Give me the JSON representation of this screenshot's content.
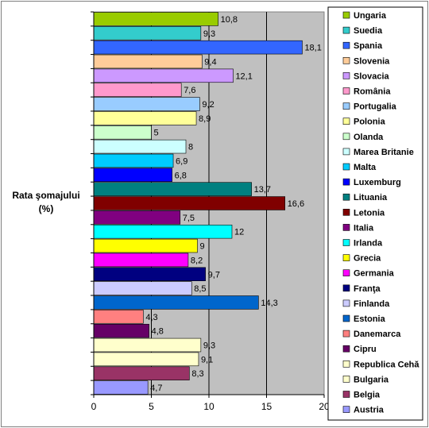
{
  "chart_data": {
    "type": "bar",
    "orientation": "horizontal",
    "ylabel_lines": [
      "Rata şomajului",
      "(%)"
    ],
    "xlim": [
      0,
      20
    ],
    "xticks": [
      0,
      5,
      10,
      15,
      20
    ],
    "grid": true,
    "legend_position": "right",
    "categories": [
      "Ungaria",
      "Suedia",
      "Spania",
      "Slovenia",
      "Slovacia",
      "România",
      "Portugalia",
      "Polonia",
      "Olanda",
      "Marea Britanie",
      "Malta",
      "Luxemburg",
      "Lituania",
      "Letonia",
      "Italia",
      "Irlanda",
      "Grecia",
      "Germania",
      "Franţa",
      "Finlanda",
      "Estonia",
      "Danemarca",
      "Cipru",
      "Republica Cehă",
      "Bulgaria",
      "Belgia",
      "Austria"
    ],
    "values": [
      10.8,
      9.3,
      18.1,
      9.4,
      12.1,
      7.6,
      9.2,
      8.9,
      5,
      8,
      6.9,
      6.8,
      13.7,
      16.6,
      7.5,
      12,
      9,
      8.2,
      9.7,
      8.5,
      14.3,
      4.3,
      4.8,
      9.3,
      9.1,
      8.3,
      4.7
    ],
    "labels": [
      "10,8",
      "9,3",
      "18,1",
      "9,4",
      "12,1",
      "7,6",
      "9,2",
      "8,9",
      "5",
      "8",
      "6,9",
      "6,8",
      "13,7",
      "16,6",
      "7,5",
      "12",
      "9",
      "8,2",
      "9,7",
      "8,5",
      "14,3",
      "4,3",
      "4,8",
      "9,3",
      "9,1",
      "8,3",
      "4,7"
    ],
    "colors": [
      "#99CC00",
      "#33CCCC",
      "#3366FF",
      "#FFCC99",
      "#CC99FF",
      "#FF99CC",
      "#99CCFF",
      "#FFFF99",
      "#CCFFCC",
      "#CCFFFF",
      "#00CCFF",
      "#0000FF",
      "#008080",
      "#800000",
      "#800080",
      "#00FFFF",
      "#FFFF00",
      "#FF00FF",
      "#000080",
      "#CCCCFF",
      "#0066CC",
      "#FF8080",
      "#660066",
      "#FFFFCC",
      "#FFFFCC",
      "#993366",
      "#9999FF"
    ]
  }
}
